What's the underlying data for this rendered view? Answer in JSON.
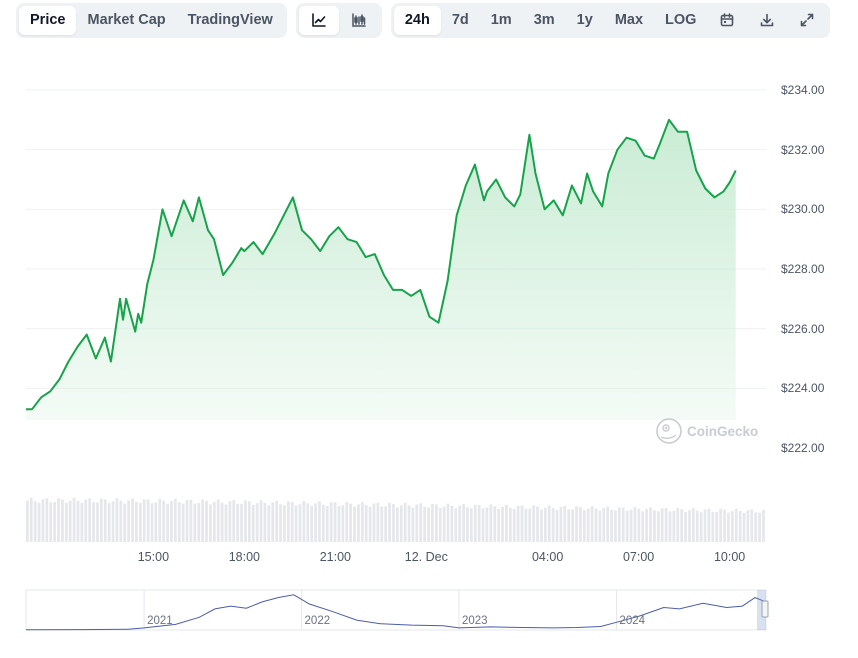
{
  "toolbar": {
    "view_tabs": [
      "Price",
      "Market Cap",
      "TradingView"
    ],
    "active_view": "Price",
    "chart_types": [
      "line-chart-icon",
      "candlestick-icon"
    ],
    "ranges": [
      "24h",
      "7d",
      "1m",
      "3m",
      "1y",
      "Max",
      "LOG"
    ],
    "active_range": "24h",
    "actions": [
      "calendar-icon",
      "download-icon",
      "fullscreen-icon"
    ]
  },
  "watermark": {
    "text": "CoinGecko"
  },
  "colors": {
    "line": "#16a34a",
    "fill_top": "#c7ebd2",
    "grid": "#eef0f3",
    "volume": "#e5e7eb",
    "nav_line": "#4b5dad"
  },
  "chart_data": {
    "type": "area",
    "y_ticks": [
      "$234.00",
      "$232.00",
      "$230.00",
      "$228.00",
      "$226.00",
      "$224.00",
      "$222.00"
    ],
    "ylim": [
      222,
      234
    ],
    "x_ticks": [
      "15:00",
      "18:00",
      "21:00",
      "12. Dec",
      "04:00",
      "07:00",
      "10:00"
    ],
    "x_tick_hours": [
      15,
      18,
      21,
      24,
      28,
      31,
      34
    ],
    "xlim": [
      10.8,
      35.2
    ],
    "grid": true,
    "series": [
      {
        "x": [
          10.8,
          11.0,
          11.3,
          11.6,
          11.9,
          12.2,
          12.5,
          12.8,
          13.1,
          13.4,
          13.6,
          13.9,
          14.0,
          14.1,
          14.4,
          14.5,
          14.6,
          14.8,
          15.0,
          15.3,
          15.6,
          16.0,
          16.3,
          16.5,
          16.8,
          17.0,
          17.3,
          17.6,
          17.9,
          18.0,
          18.3,
          18.6,
          19.0,
          19.3,
          19.6,
          19.9,
          20.2,
          20.5,
          20.8,
          21.1,
          21.4,
          21.7,
          22.0,
          22.3,
          22.6,
          22.9,
          23.2,
          23.5,
          23.8,
          24.1,
          24.4,
          24.7,
          25.0,
          25.3,
          25.6,
          25.9,
          26.0,
          26.3,
          26.6,
          26.9,
          27.1,
          27.4,
          27.6,
          27.9,
          28.2,
          28.5,
          28.8,
          29.1,
          29.3,
          29.5,
          29.8,
          30.0,
          30.3,
          30.6,
          30.9,
          31.2,
          31.5,
          31.7,
          32.0,
          32.3,
          32.6,
          32.9,
          33.2,
          33.5,
          33.8,
          34.0,
          34.2
        ],
        "values": [
          223.3,
          223.3,
          223.7,
          223.9,
          224.3,
          224.9,
          225.4,
          225.8,
          225.0,
          225.7,
          224.9,
          227.0,
          226.3,
          227.0,
          225.9,
          226.5,
          226.2,
          227.5,
          228.3,
          230.0,
          229.1,
          230.3,
          229.6,
          230.4,
          229.3,
          229.0,
          227.8,
          228.2,
          228.7,
          228.6,
          228.9,
          228.5,
          229.2,
          229.8,
          230.4,
          229.3,
          229.0,
          228.6,
          229.1,
          229.4,
          229.0,
          228.9,
          228.4,
          228.5,
          227.8,
          227.3,
          227.3,
          227.1,
          227.3,
          226.4,
          226.2,
          227.6,
          229.8,
          230.8,
          231.5,
          230.3,
          230.6,
          231.0,
          230.4,
          230.1,
          230.5,
          232.5,
          231.2,
          230.0,
          230.3,
          229.8,
          230.8,
          230.2,
          231.2,
          230.6,
          230.1,
          231.2,
          232.0,
          232.4,
          232.3,
          231.8,
          231.7,
          232.2,
          233.0,
          232.6,
          232.6,
          231.3,
          230.7,
          230.4,
          230.6,
          230.9,
          231.3
        ]
      }
    ],
    "volume_relative": [
      0.92,
      0.92,
      0.91,
      0.9,
      0.88,
      0.86,
      0.84,
      0.82,
      0.8,
      0.78,
      0.76,
      0.74,
      0.72,
      0.7,
      0.68
    ],
    "navigator": {
      "x_ticks": [
        "2021",
        "2022",
        "2023",
        "2024"
      ],
      "x_tick_years": [
        2021,
        2022,
        2023,
        2024
      ],
      "xlim": [
        2020.25,
        2024.95
      ],
      "ylim": [
        0,
        270
      ],
      "x": [
        2020.25,
        2020.6,
        2020.9,
        2021.0,
        2021.2,
        2021.35,
        2021.45,
        2021.55,
        2021.65,
        2021.75,
        2021.85,
        2021.95,
        2022.05,
        2022.2,
        2022.35,
        2022.5,
        2022.7,
        2022.9,
        2023.0,
        2023.2,
        2023.4,
        2023.6,
        2023.75,
        2023.9,
        2024.0,
        2024.15,
        2024.3,
        2024.4,
        2024.55,
        2024.7,
        2024.8,
        2024.88,
        2024.95
      ],
      "values": [
        2,
        3,
        5,
        15,
        40,
        90,
        150,
        170,
        155,
        200,
        230,
        250,
        185,
        130,
        70,
        45,
        35,
        30,
        15,
        22,
        18,
        15,
        18,
        25,
        55,
        100,
        160,
        150,
        190,
        160,
        170,
        230,
        200
      ]
    }
  }
}
